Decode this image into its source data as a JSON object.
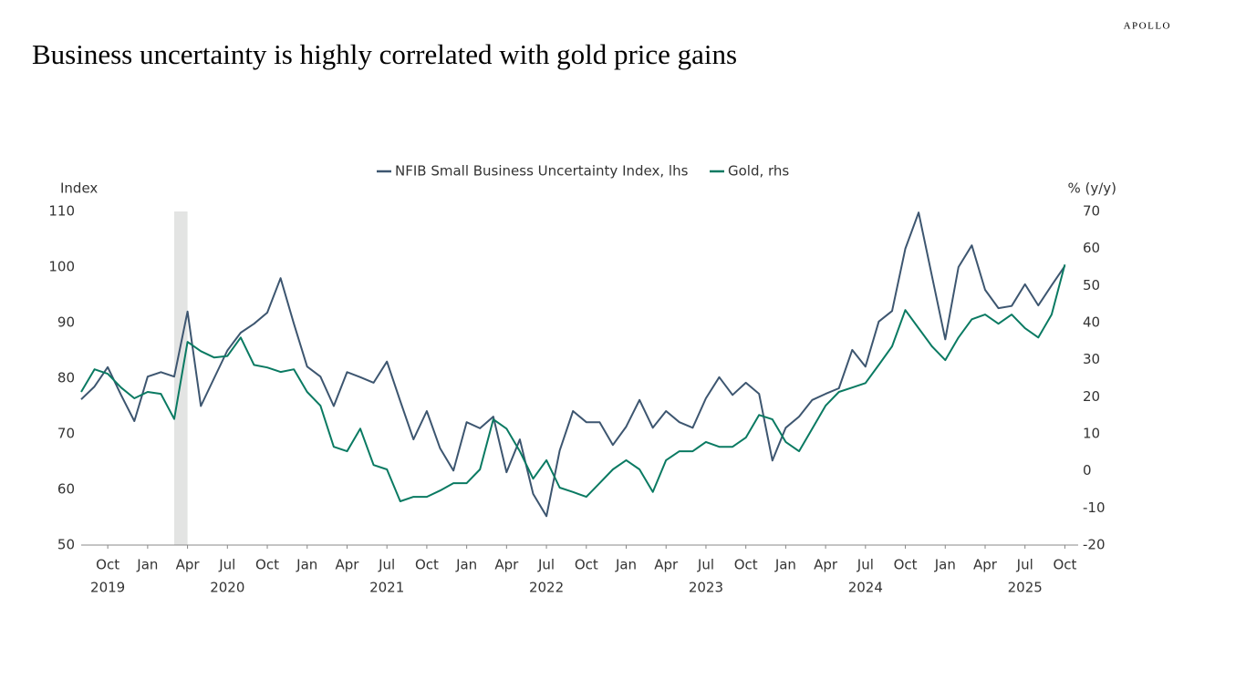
{
  "brand": "APOLLO",
  "chart_data": {
    "type": "line",
    "title": "Business uncertainty is highly correlated with gold price gains",
    "y_label": "Index",
    "y2_label": "% (y/y)",
    "x": [
      "2019-08",
      "2019-09",
      "2019-10",
      "2019-11",
      "2019-12",
      "2020-01",
      "2020-02",
      "2020-03",
      "2020-04",
      "2020-05",
      "2020-06",
      "2020-07",
      "2020-08",
      "2020-09",
      "2020-10",
      "2020-11",
      "2020-12",
      "2021-01",
      "2021-02",
      "2021-03",
      "2021-04",
      "2021-05",
      "2021-06",
      "2021-07",
      "2021-08",
      "2021-09",
      "2021-10",
      "2021-11",
      "2021-12",
      "2022-01",
      "2022-02",
      "2022-03",
      "2022-04",
      "2022-05",
      "2022-06",
      "2022-07",
      "2022-08",
      "2022-09",
      "2022-10",
      "2022-11",
      "2022-12",
      "2023-01",
      "2023-02",
      "2023-03",
      "2023-04",
      "2023-05",
      "2023-06",
      "2023-07",
      "2023-08",
      "2023-09",
      "2023-10",
      "2023-11",
      "2023-12",
      "2024-01",
      "2024-02",
      "2024-03",
      "2024-04",
      "2024-05",
      "2024-06",
      "2024-07",
      "2024-08",
      "2024-09",
      "2024-10",
      "2024-11",
      "2024-12",
      "2025-01",
      "2025-02",
      "2025-03",
      "2025-04",
      "2025-05",
      "2025-06",
      "2025-07",
      "2025-08",
      "2025-09",
      "2025-10"
    ],
    "series": [
      {
        "name": "NFIB Small Business Uncertainty Index, lhs",
        "color": "#3d5670",
        "axis": "y",
        "values": [
          76.2,
          78.5,
          82,
          77,
          72.3,
          80.3,
          81.1,
          80.3,
          92,
          75,
          80,
          85,
          88.2,
          89.8,
          91.8,
          98,
          89.8,
          82.1,
          80.3,
          75,
          81.1,
          80.2,
          79.2,
          83,
          75.9,
          69,
          74.1,
          67.4,
          63.4,
          72.1,
          71,
          73.1,
          63.1,
          69,
          59.2,
          55.2,
          67,
          74.1,
          72.1,
          72.1,
          68,
          71.3,
          76.1,
          71.1,
          74.1,
          72.1,
          71.1,
          76.4,
          80.2,
          77,
          79.2,
          77.2,
          65.2,
          71.1,
          73.1,
          76.1,
          77.2,
          78.2,
          85.1,
          82.1,
          90.2,
          92.1,
          103.3,
          109.8,
          98.4,
          87,
          100,
          103.9,
          95.9,
          92.6,
          93,
          96.9,
          93.1,
          96.7,
          100.2
        ]
      },
      {
        "name": "Gold, rhs",
        "color": "#0a7a62",
        "axis": "y2",
        "values": [
          21.3,
          27.4,
          26.2,
          22.5,
          19.6,
          21.3,
          20.8,
          14,
          34.8,
          32.3,
          30.6,
          31,
          36,
          28.6,
          27.9,
          26.7,
          27.4,
          21.3,
          17.6,
          6.5,
          5.3,
          11.4,
          1.6,
          0.4,
          -8.2,
          -7,
          -7,
          -5.3,
          -3.3,
          -3.3,
          0.4,
          13.9,
          11.4,
          5.3,
          -2.1,
          2.9,
          -4.5,
          -5.7,
          -7,
          -3.3,
          0.4,
          2.9,
          0.4,
          -5.7,
          2.9,
          5.3,
          5.3,
          7.8,
          6.5,
          6.5,
          9,
          15.1,
          13.9,
          7.8,
          5.3,
          11.4,
          17.6,
          21.3,
          22.5,
          23.7,
          28.6,
          33.6,
          43.4,
          38.5,
          33.6,
          29.9,
          36,
          40.9,
          42.2,
          39.7,
          42.2,
          38.5,
          36,
          42.2,
          55.7
        ]
      }
    ],
    "xlim": [
      "2019-08",
      "2025-11"
    ],
    "xticks": [
      {
        "value": "2019-10",
        "label": "Oct"
      },
      {
        "value": "2020-01",
        "label": "Jan"
      },
      {
        "value": "2020-04",
        "label": "Apr"
      },
      {
        "value": "2020-07",
        "label": "Jul"
      },
      {
        "value": "2020-10",
        "label": "Oct"
      },
      {
        "value": "2021-01",
        "label": "Jan"
      },
      {
        "value": "2021-04",
        "label": "Apr"
      },
      {
        "value": "2021-07",
        "label": "Jul"
      },
      {
        "value": "2021-10",
        "label": "Oct"
      },
      {
        "value": "2022-01",
        "label": "Jan"
      },
      {
        "value": "2022-04",
        "label": "Apr"
      },
      {
        "value": "2022-07",
        "label": "Jul"
      },
      {
        "value": "2022-10",
        "label": "Oct"
      },
      {
        "value": "2023-01",
        "label": "Jan"
      },
      {
        "value": "2023-04",
        "label": "Apr"
      },
      {
        "value": "2023-07",
        "label": "Jul"
      },
      {
        "value": "2023-10",
        "label": "Oct"
      },
      {
        "value": "2024-01",
        "label": "Jan"
      },
      {
        "value": "2024-04",
        "label": "Apr"
      },
      {
        "value": "2024-07",
        "label": "Jul"
      },
      {
        "value": "2024-10",
        "label": "Oct"
      },
      {
        "value": "2025-01",
        "label": "Jan"
      },
      {
        "value": "2025-04",
        "label": "Apr"
      },
      {
        "value": "2025-07",
        "label": "Jul"
      },
      {
        "value": "2025-10",
        "label": "Oct"
      }
    ],
    "year_labels": [
      {
        "value": "2019-10",
        "label": "2019"
      },
      {
        "value": "2020-07",
        "label": "2020"
      },
      {
        "value": "2021-07",
        "label": "2021"
      },
      {
        "value": "2022-07",
        "label": "2022"
      },
      {
        "value": "2023-07",
        "label": "2023"
      },
      {
        "value": "2024-07",
        "label": "2024"
      },
      {
        "value": "2025-07",
        "label": "2025"
      }
    ],
    "shaded": {
      "from": "2020-03",
      "to": "2020-04",
      "color": "#e3e4e3"
    },
    "ylim": [
      50,
      110
    ],
    "yticks": [
      50,
      60,
      70,
      80,
      90,
      100,
      110
    ],
    "y2lim": [
      -20,
      70
    ],
    "y2ticks": [
      -20,
      -10,
      0,
      10,
      20,
      30,
      40,
      50,
      60,
      70
    ],
    "legend": "top"
  }
}
